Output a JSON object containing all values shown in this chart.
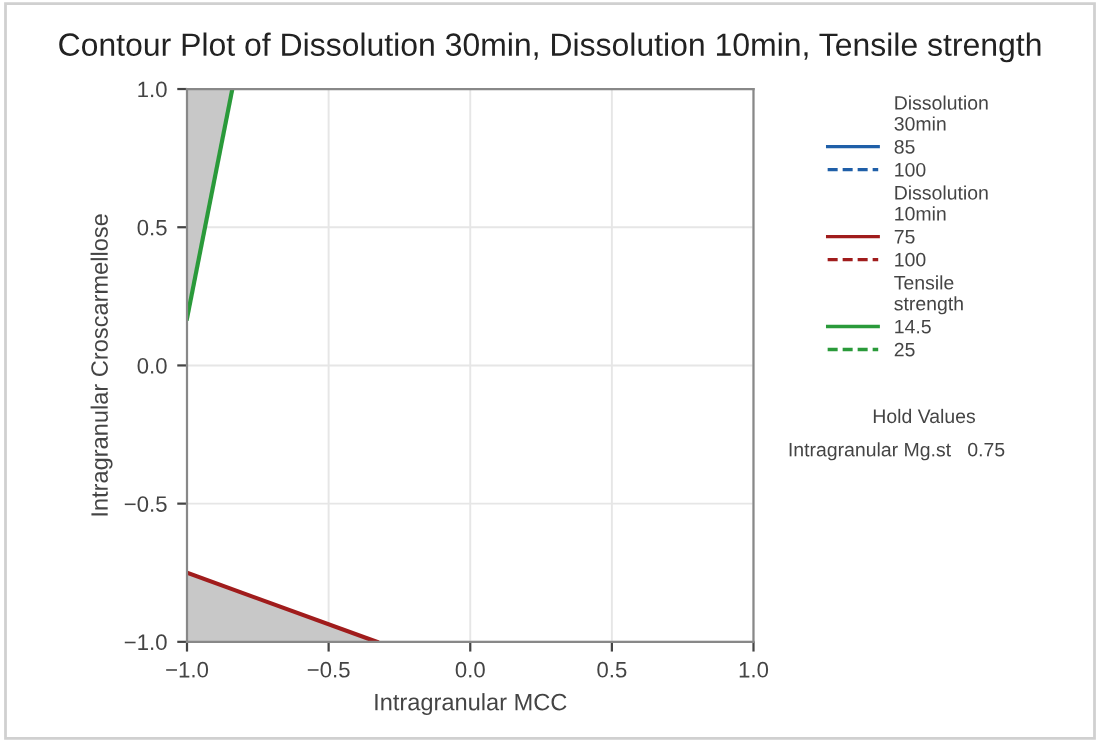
{
  "chart_data": {
    "type": "line",
    "title": "Contour Plot of Dissolution 30min, Dissolution 10min, Tensile strength",
    "xlabel": "Intragranular MCC",
    "ylabel": "Intragranular Croscarmellose",
    "xlim": [
      -1.0,
      1.0
    ],
    "ylim": [
      -1.0,
      1.0
    ],
    "xticks": [
      {
        "value": -1.0,
        "label": "−1.0"
      },
      {
        "value": -0.5,
        "label": "−0.5"
      },
      {
        "value": 0.0,
        "label": "0.0"
      },
      {
        "value": 0.5,
        "label": "0.5"
      },
      {
        "value": 1.0,
        "label": "1.0"
      }
    ],
    "yticks": [
      {
        "value": -1.0,
        "label": "−1.0"
      },
      {
        "value": -0.5,
        "label": "−0.5"
      },
      {
        "value": 0.0,
        "label": "0.0"
      },
      {
        "value": 0.5,
        "label": "0.5"
      },
      {
        "value": 1.0,
        "label": "1.0"
      }
    ],
    "grid": true,
    "legend": "right",
    "series": [
      {
        "name": "85",
        "color": "#1f5fa8",
        "line_style": "solid"
      },
      {
        "name": "100",
        "color": "#1f5fa8",
        "line_style": "dashed"
      },
      {
        "name": "75",
        "color": "#a01c1c",
        "line_style": "solid",
        "x": [
          -1.0,
          -0.33
        ],
        "values": [
          -0.75,
          -1.0
        ],
        "lower": [
          -1.0,
          -1.0
        ],
        "upper": [
          -0.75,
          -1.0
        ]
      },
      {
        "name": "100",
        "color": "#a01c1c",
        "line_style": "dashed"
      },
      {
        "name": "14.5",
        "color": "#2a9a3a",
        "line_style": "solid",
        "x": [
          -1.0,
          -0.84
        ],
        "values": [
          0.17,
          1.0
        ],
        "lower": [
          0.17,
          1.0
        ],
        "upper": [
          1.0,
          1.0
        ]
      },
      {
        "name": "25",
        "color": "#2a9a3a",
        "line_style": "dashed"
      }
    ],
    "annotations": [
      "Dissolution\n30min",
      "Dissolution\n10min",
      "Tensile\nstrength",
      "Hold Values",
      "Intragranular Mg.st   0.75"
    ]
  }
}
